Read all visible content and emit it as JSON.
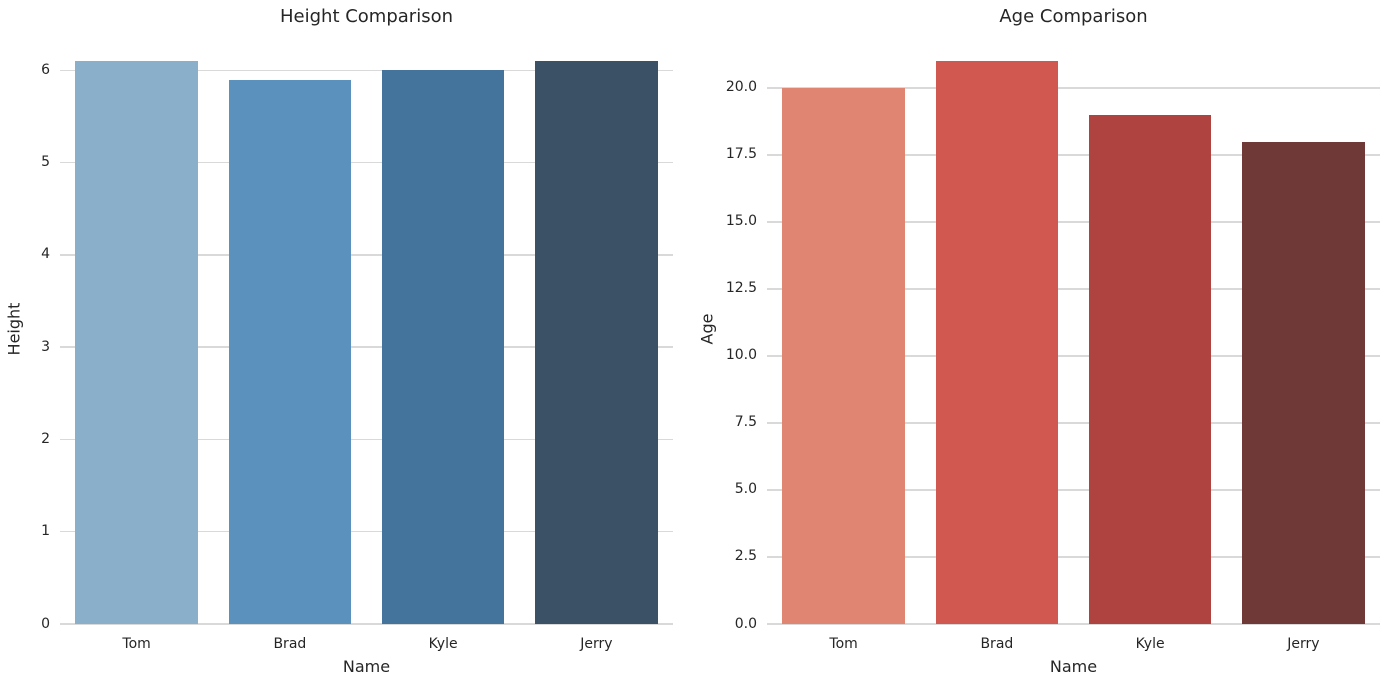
{
  "figure": {
    "background_color": "#ffffff",
    "text_color": "#262626",
    "grid_color": "#d9d9d9"
  },
  "chart_data": [
    {
      "type": "bar",
      "title": "Height Comparison",
      "xlabel": "Name",
      "ylabel": "Height",
      "categories": [
        "Tom",
        "Brad",
        "Kyle",
        "Jerry"
      ],
      "values": [
        6.1,
        5.9,
        6.0,
        6.1
      ],
      "bar_colors": [
        "#8AAFCB",
        "#5B92BD",
        "#44739B",
        "#3B5166"
      ],
      "ylim": [
        0,
        6.405
      ],
      "yticks": {
        "labels": [
          "0",
          "1",
          "2",
          "3",
          "4",
          "5",
          "6"
        ],
        "values": [
          0,
          1,
          2,
          3,
          4,
          5,
          6
        ]
      },
      "grid": true,
      "legend": "none",
      "bar_width_fraction": 0.8
    },
    {
      "type": "bar",
      "title": "Age Comparison",
      "xlabel": "Name",
      "ylabel": "Age",
      "categories": [
        "Tom",
        "Brad",
        "Kyle",
        "Jerry"
      ],
      "values": [
        20,
        21,
        19,
        18
      ],
      "bar_colors": [
        "#E08572",
        "#D05850",
        "#AF4340",
        "#6F3937"
      ],
      "ylim": [
        0,
        22.05
      ],
      "yticks": {
        "labels": [
          "0.0",
          "2.5",
          "5.0",
          "7.5",
          "10.0",
          "12.5",
          "15.0",
          "17.5",
          "20.0"
        ],
        "values": [
          0,
          2.5,
          5,
          7.5,
          10,
          12.5,
          15,
          17.5,
          20
        ]
      },
      "grid": true,
      "legend": "none",
      "bar_width_fraction": 0.8
    }
  ]
}
